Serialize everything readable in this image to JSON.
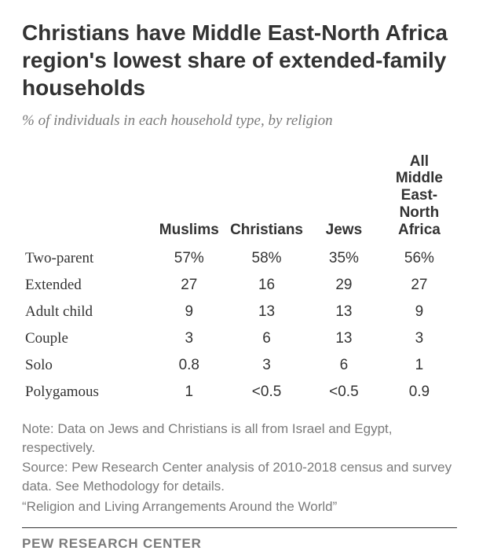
{
  "title": "Christians have Middle East-North Africa region's lowest share of extended-family households",
  "subtitle": "% of individuals in each household type, by religion",
  "table": {
    "columns": [
      "",
      "Muslims",
      "Christians",
      "Jews",
      "All Middle East-North Africa"
    ],
    "col_widths": [
      "30%",
      "17.5%",
      "17.5%",
      "17.5%",
      "17.5%"
    ],
    "rows": [
      {
        "label": "Two-parent",
        "values": [
          "57%",
          "58%",
          "35%",
          "56%"
        ]
      },
      {
        "label": "Extended",
        "values": [
          "27",
          "16",
          "29",
          "27"
        ]
      },
      {
        "label": "Adult child",
        "values": [
          "9",
          "13",
          "13",
          "9"
        ]
      },
      {
        "label": "Couple",
        "values": [
          "3",
          "6",
          "13",
          "3"
        ]
      },
      {
        "label": "Solo",
        "values": [
          "0.8",
          "3",
          "6",
          "1"
        ]
      },
      {
        "label": "Polygamous",
        "values": [
          "1",
          "<0.5",
          "<0.5",
          "0.9"
        ]
      }
    ]
  },
  "notes": {
    "note": "Note: Data on Jews and Christians is all from Israel and Egypt, respectively.",
    "source": "Source: Pew Research Center analysis of 2010-2018 census and survey data. See Methodology for details.",
    "quote": "“Religion and Living Arrangements Around the World”"
  },
  "footer": "PEW RESEARCH CENTER",
  "style": {
    "background_color": "#ffffff",
    "title_color": "#333333",
    "title_fontsize": 28,
    "subtitle_color": "#7a7a7a",
    "subtitle_fontsize": 19,
    "table_fontsize": 19,
    "table_text_color": "#333333",
    "notes_color": "#7a7a7a",
    "notes_fontsize": 17,
    "footer_color": "#7a7a7a",
    "footer_fontsize": 17,
    "divider_color": "#333333"
  }
}
